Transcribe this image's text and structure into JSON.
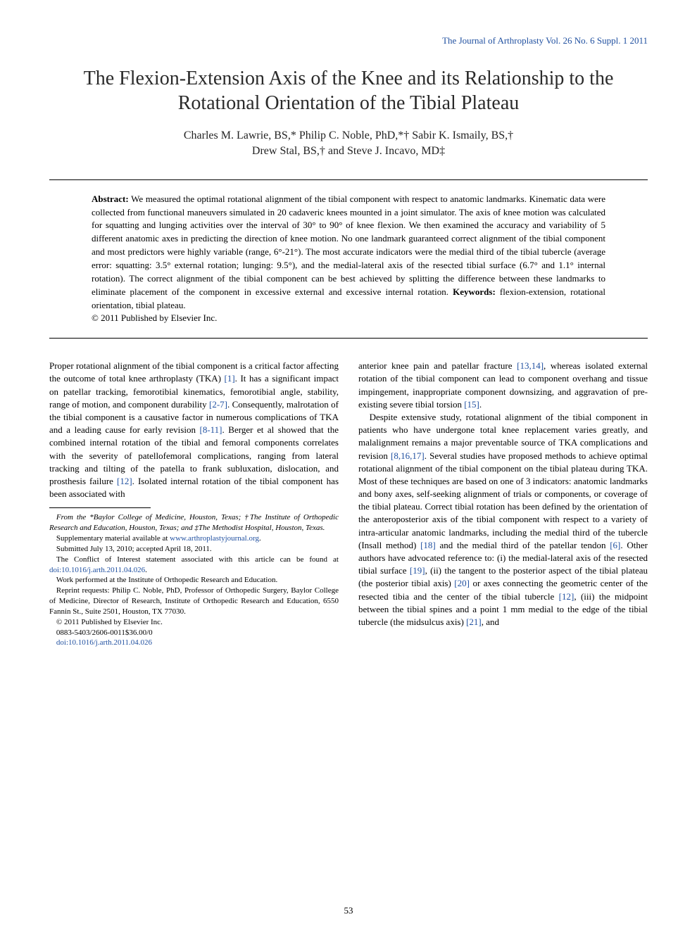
{
  "journal_header": "The Journal of Arthroplasty Vol. 26 No. 6 Suppl. 1 2011",
  "title": "The Flexion-Extension Axis of the Knee and its Relationship to the Rotational Orientation of the Tibial Plateau",
  "authors_line1": "Charles M. Lawrie, BS,* Philip C. Noble, PhD,*† Sabir K. Ismaily, BS,†",
  "authors_line2": "Drew Stal, BS,† and Steve J. Incavo, MD‡",
  "abstract": {
    "label": "Abstract:",
    "body": " We measured the optimal rotational alignment of the tibial component with respect to anatomic landmarks. Kinematic data were collected from functional maneuvers simulated in 20 cadaveric knees mounted in a joint simulator. The axis of knee motion was calculated for squatting and lunging activities over the interval of 30° to 90° of knee flexion. We then examined the accuracy and variability of 5 different anatomic axes in predicting the direction of knee motion. No one landmark guaranteed correct alignment of the tibial component and most predictors were highly variable (range, 6°-21°). The most accurate indicators were the medial third of the tibial tubercle (average error: squatting: 3.5° external rotation; lunging: 9.5°), and the medial-lateral axis of the resected tibial surface (6.7° and 1.1° internal rotation). The correct alignment of the tibial component can be best achieved by splitting the difference between these landmarks to eliminate placement of the component in excessive external and excessive internal rotation. ",
    "keywords_label": "Keywords:",
    "keywords": " flexion-extension, rotational orientation, tibial plateau.",
    "copyright": "© 2011 Published by Elsevier Inc."
  },
  "col1": {
    "p1a": "Proper rotational alignment of the tibial component is a critical factor affecting the outcome of total knee arthroplasty (TKA) ",
    "ref1": "[1]",
    "p1b": ". It has a significant impact on patellar tracking, femorotibial kinematics, femorotibial angle, stability, range of motion, and component durability ",
    "ref2": "[2-7]",
    "p1c": ". Consequently, malrotation of the tibial component is a causative factor in numerous complications of TKA and a leading cause for early revision ",
    "ref3": "[8-11]",
    "p1d": ". Berger et al showed that the combined internal rotation of the tibial and femoral components correlates with the severity of patellofemoral complications, ranging from lateral tracking and tilting of the patella to frank subluxation, dislocation, and prosthesis failure ",
    "ref4": "[12]",
    "p1e": ". Isolated internal rotation of the tibial component has been associated with"
  },
  "footnotes": {
    "f1": "From the *Baylor College of Medicine, Houston, Texas; †The Institute of Orthopedic Research and Education, Houston, Texas; and ‡The Methodist Hospital, Houston, Texas.",
    "f2a": "Supplementary material available at ",
    "f2link": "www.arthroplastyjournal.org",
    "f2b": ".",
    "f3": "Submitted July 13, 2010; accepted April 18, 2011.",
    "f4a": "The Conflict of Interest statement associated with this article can be found at ",
    "f4link": "doi:10.1016/j.arth.2011.04.026",
    "f4b": ".",
    "f5": "Work performed at the Institute of Orthopedic Research and Education.",
    "f6": "Reprint requests: Philip C. Noble, PhD, Professor of Orthopedic Surgery, Baylor College of Medicine, Director of Research, Institute of Orthopedic Research and Education, 6550 Fannin St., Suite 2501, Houston, TX 77030.",
    "f7": "© 2011 Published by Elsevier Inc.",
    "f8": "0883-5403/2606-0011$36.00/0",
    "f9": "doi:10.1016/j.arth.2011.04.026"
  },
  "col2": {
    "p1a": "anterior knee pain and patellar fracture ",
    "ref1": "[13,14]",
    "p1b": ", whereas isolated external rotation of the tibial component can lead to component overhang and tissue impingement, inappropriate component downsizing, and aggravation of pre-existing severe tibial torsion ",
    "ref2": "[15]",
    "p1c": ".",
    "p2a": "Despite extensive study, rotational alignment of the tibial component in patients who have undergone total knee replacement varies greatly, and malalignment remains a major preventable source of TKA complications and revision ",
    "ref3": "[8,16,17]",
    "p2b": ". Several studies have proposed methods to achieve optimal rotational alignment of the tibial component on the tibial plateau during TKA. Most of these techniques are based on one of 3 indicators: anatomic landmarks and bony axes, self-seeking alignment of trials or components, or coverage of the tibial plateau. Correct tibial rotation has been defined by the orientation of the anteroposterior axis of the tibial component with respect to a variety of intra-articular anatomic landmarks, including the medial third of the tubercle (Insall method) ",
    "ref4": "[18]",
    "p2c": " and the medial third of the patellar tendon ",
    "ref5": "[6]",
    "p2d": ". Other authors have advocated reference to: (i) the medial-lateral axis of the resected tibial surface ",
    "ref6": "[19]",
    "p2e": ", (ii) the tangent to the posterior aspect of the tibial plateau (the posterior tibial axis) ",
    "ref7": "[20]",
    "p2f": " or axes connecting the geometric center of the resected tibia and the center of the tibial tubercle ",
    "ref8": "[12]",
    "p2g": ", (iii) the midpoint between the tibial spines and a point 1 mm medial to the edge of the tibial tubercle (the midsulcus axis) ",
    "ref9": "[21]",
    "p2h": ", and"
  },
  "page_number": "53",
  "colors": {
    "link": "#2050a0",
    "text": "#000000",
    "background": "#ffffff"
  }
}
